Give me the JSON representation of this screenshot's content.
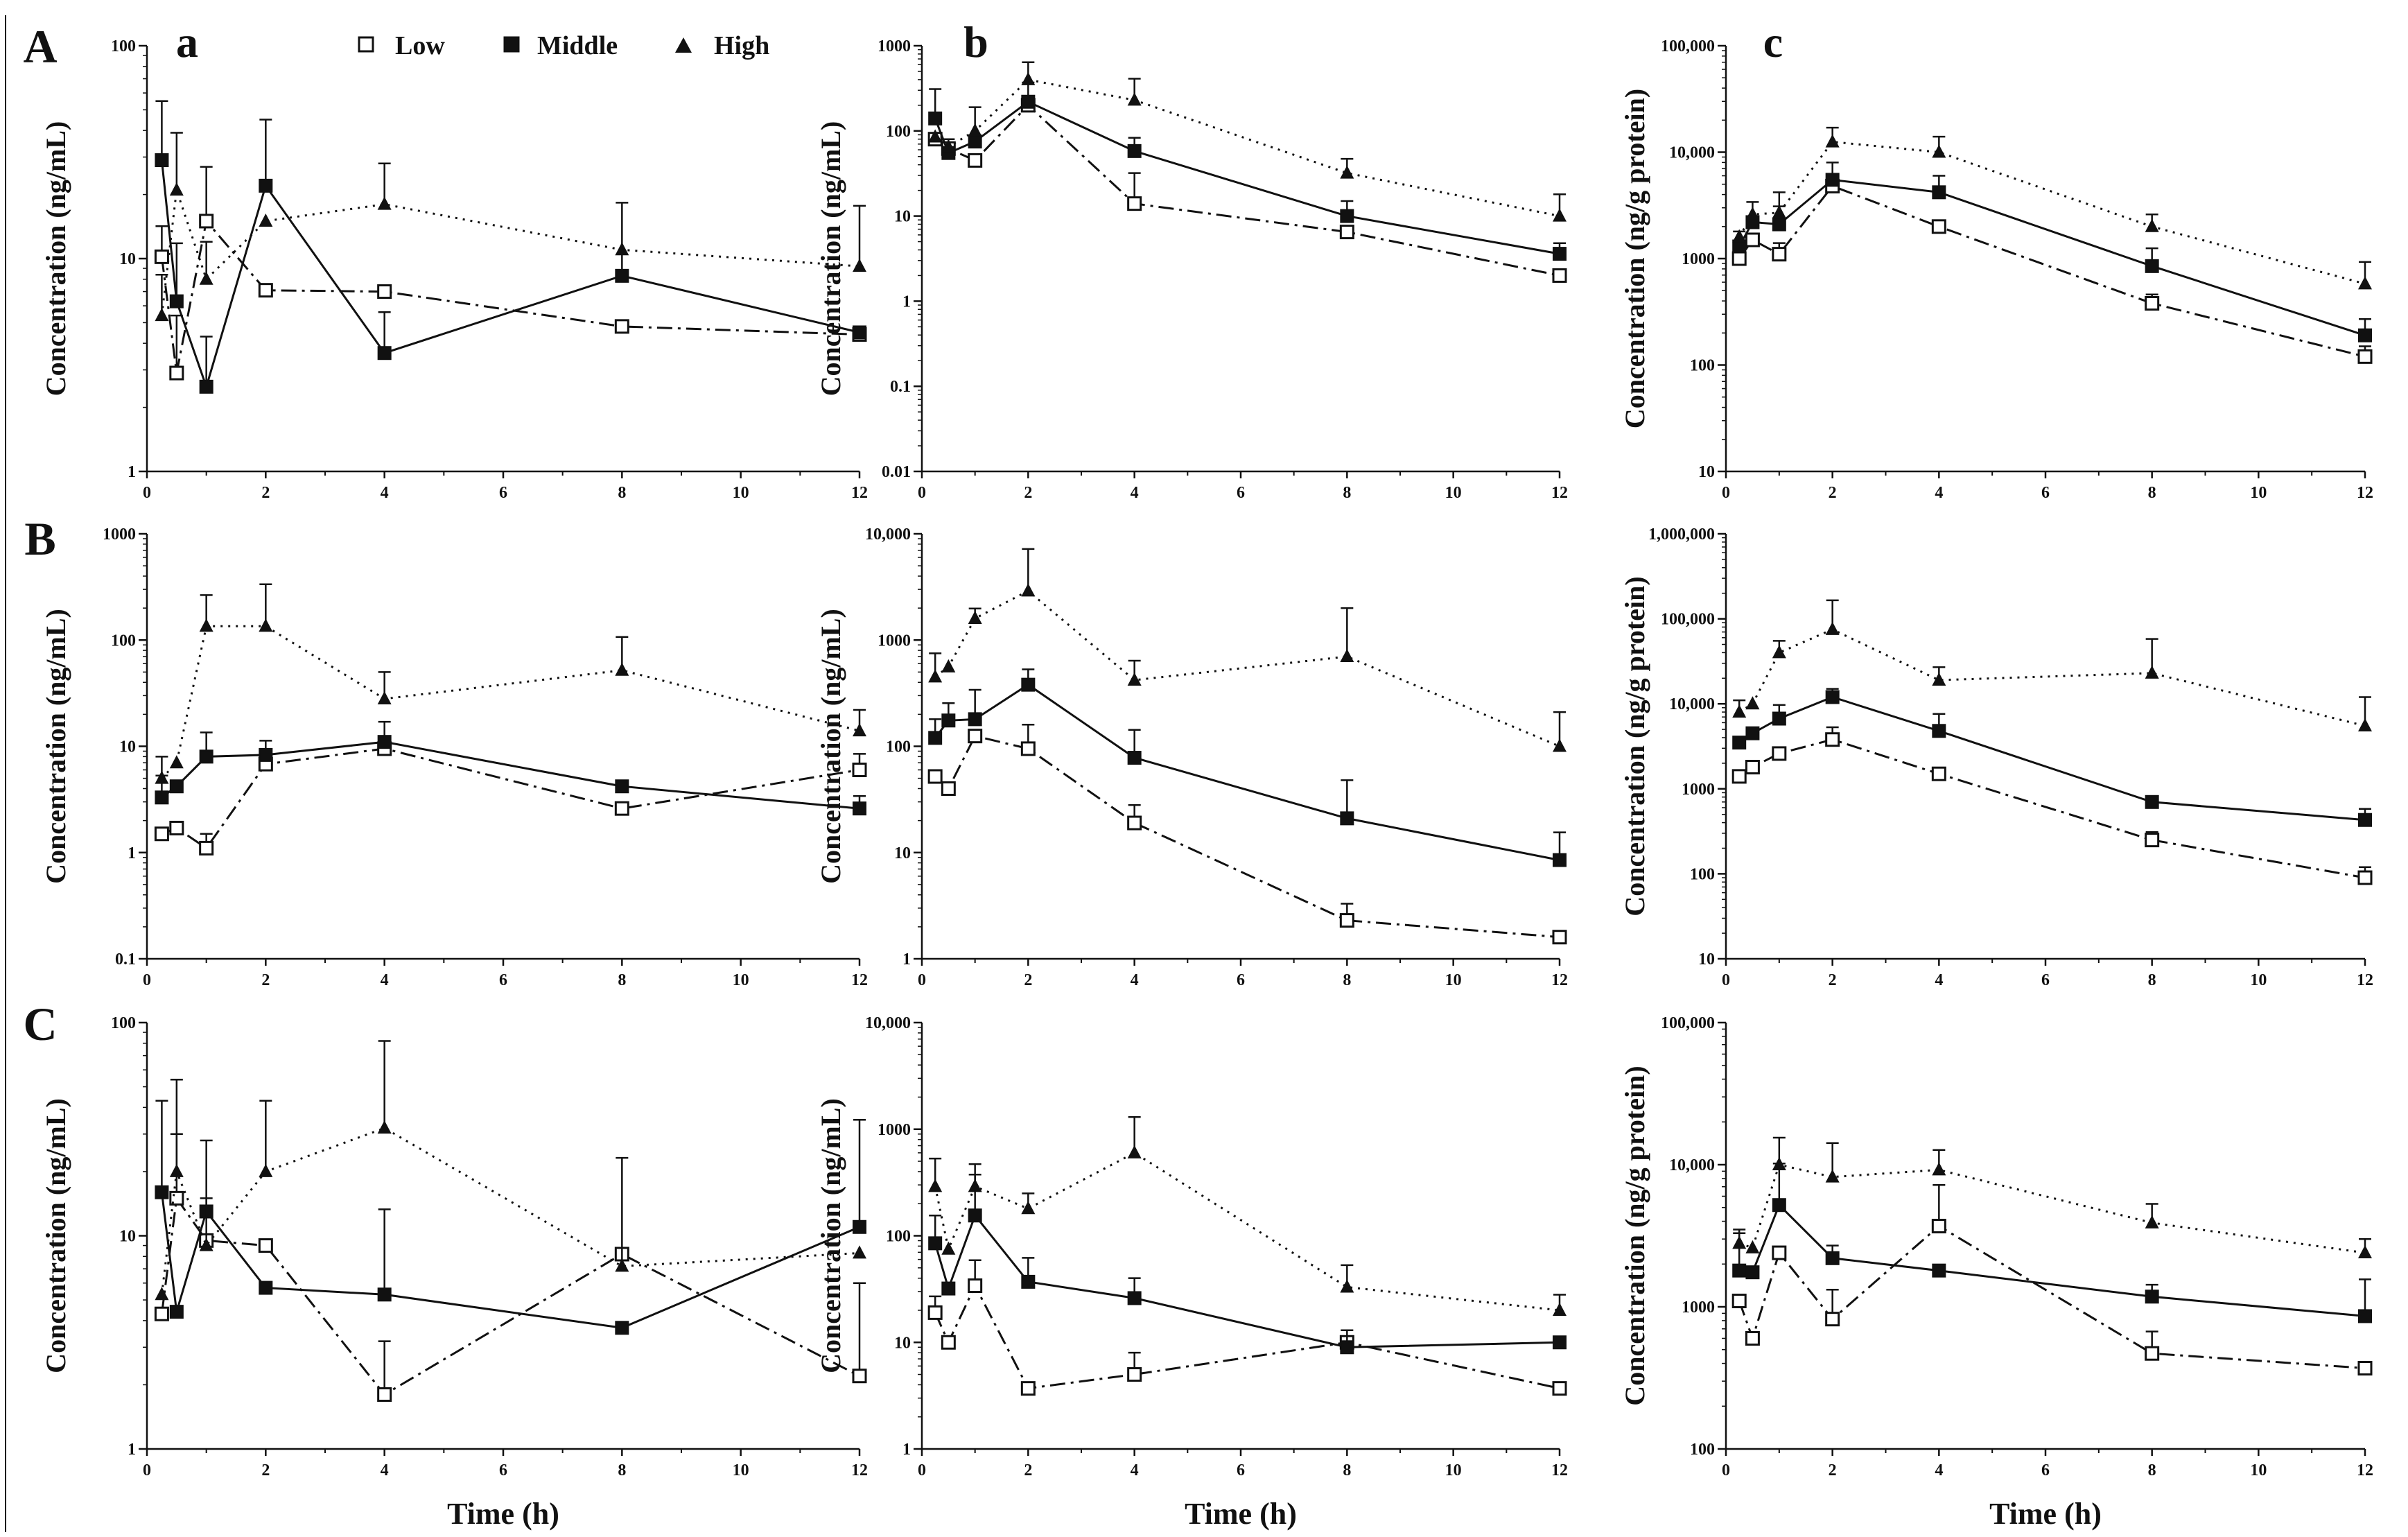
{
  "row_labels": [
    "A",
    "B",
    "C"
  ],
  "col_labels": [
    "a",
    "b",
    "c"
  ],
  "legend": [
    "Low",
    "Middle",
    "High"
  ],
  "series_styles": {
    "Low": {
      "marker": "open-square",
      "line": "dash-dot",
      "color": "#111111"
    },
    "Middle": {
      "marker": "filled-square",
      "line": "solid",
      "color": "#111111"
    },
    "High": {
      "marker": "filled-triangle",
      "line": "dotted",
      "color": "#111111"
    }
  },
  "x_axis_label": "Time (h)",
  "chart_data": [
    {
      "type": "line",
      "row": "A",
      "col": "a",
      "log_y": true,
      "xlim": [
        0,
        12
      ],
      "ylim": [
        1,
        100
      ],
      "x_ticks": [
        0,
        2,
        4,
        6,
        8,
        10,
        12
      ],
      "y_ticks": [
        1,
        10,
        100
      ],
      "y_tick_labels": [
        "1",
        "10",
        "100"
      ],
      "xlabel": "",
      "ylabel": "Concentration (ng/mL)",
      "x": [
        0.25,
        0.5,
        1,
        2,
        4,
        8,
        12
      ],
      "series": [
        {
          "name": "Low",
          "values": [
            10.2,
            2.9,
            15,
            7.1,
            7,
            4.8,
            4.4
          ],
          "errors": [
            4,
            2.5,
            12,
            0,
            0,
            0,
            0
          ]
        },
        {
          "name": "Middle",
          "values": [
            29,
            6.3,
            2.5,
            22,
            3.6,
            8.3,
            4.5
          ],
          "errors": [
            26,
            5.5,
            1.8,
            23,
            2,
            10,
            0
          ]
        },
        {
          "name": "High",
          "values": [
            5.4,
            21,
            8,
            15,
            18,
            11,
            9.2
          ],
          "errors": [
            3,
            18,
            4,
            0,
            10,
            0,
            8.5
          ]
        }
      ]
    },
    {
      "type": "line",
      "row": "A",
      "col": "b",
      "log_y": true,
      "xlim": [
        0,
        12
      ],
      "ylim": [
        0.01,
        1000
      ],
      "x_ticks": [
        0,
        2,
        4,
        6,
        8,
        10,
        12
      ],
      "y_ticks": [
        0.01,
        0.1,
        1,
        10,
        100,
        1000
      ],
      "y_tick_labels": [
        "0.01",
        "0.1",
        "1",
        "10",
        "100",
        "1000"
      ],
      "xlabel": "",
      "ylabel": "Concentration (ng/mL)",
      "x": [
        0.25,
        0.5,
        1,
        2,
        4,
        8,
        12
      ],
      "series": [
        {
          "name": "Low",
          "values": [
            80,
            62,
            45,
            200,
            14,
            6.5,
            2
          ],
          "errors": [
            0,
            0,
            0,
            0,
            18,
            0,
            0
          ]
        },
        {
          "name": "Middle",
          "values": [
            140,
            55,
            75,
            220,
            58,
            10,
            3.6
          ],
          "errors": [
            170,
            25,
            0,
            150,
            25,
            5,
            1.2
          ]
        },
        {
          "name": "High",
          "values": [
            85,
            65,
            100,
            400,
            230,
            32,
            10
          ],
          "errors": [
            0,
            0,
            90,
            240,
            180,
            15,
            8
          ]
        }
      ]
    },
    {
      "type": "line",
      "row": "A",
      "col": "c",
      "log_y": true,
      "xlim": [
        0,
        12
      ],
      "ylim": [
        10,
        100000
      ],
      "x_ticks": [
        0,
        2,
        4,
        6,
        8,
        10,
        12
      ],
      "y_ticks": [
        10,
        100,
        1000,
        10000,
        100000
      ],
      "y_tick_labels": [
        "10",
        "100",
        "1000",
        "10,000",
        "100,000"
      ],
      "xlabel": "",
      "ylabel": "Concentration (ng/g protein)",
      "x": [
        0.25,
        0.5,
        1,
        2,
        4,
        8,
        12
      ],
      "series": [
        {
          "name": "Low",
          "values": [
            1000,
            1500,
            1100,
            4800,
            2000,
            380,
            120
          ],
          "errors": [
            0,
            0,
            300,
            0,
            0,
            80,
            30
          ]
        },
        {
          "name": "Middle",
          "values": [
            1300,
            2200,
            2100,
            5500,
            4200,
            850,
            190
          ],
          "errors": [
            500,
            1200,
            1000,
            2500,
            1800,
            400,
            80
          ]
        },
        {
          "name": "High",
          "values": [
            1600,
            2600,
            2700,
            12500,
            10000,
            2000,
            580
          ],
          "errors": [
            0,
            0,
            1500,
            4500,
            4000,
            600,
            350
          ]
        }
      ]
    },
    {
      "type": "line",
      "row": "B",
      "col": "a",
      "log_y": true,
      "xlim": [
        0,
        12
      ],
      "ylim": [
        0.1,
        1000
      ],
      "x_ticks": [
        0,
        2,
        4,
        6,
        8,
        10,
        12
      ],
      "y_ticks": [
        0.1,
        1,
        10,
        100,
        1000
      ],
      "y_tick_labels": [
        "0.1",
        "1",
        "10",
        "100",
        "1000"
      ],
      "xlabel": "",
      "ylabel": "Concentration (ng/mL)",
      "x": [
        0.25,
        0.5,
        1,
        2,
        4,
        8,
        12
      ],
      "series": [
        {
          "name": "Low",
          "values": [
            1.5,
            1.7,
            1.1,
            6.8,
            9.5,
            2.6,
            6
          ],
          "errors": [
            0,
            0,
            0.4,
            0,
            0,
            0,
            2.5
          ]
        },
        {
          "name": "Middle",
          "values": [
            3.3,
            4.2,
            8,
            8.3,
            11,
            4.2,
            2.6
          ],
          "errors": [
            2,
            0,
            5.5,
            3,
            6,
            0,
            0.8
          ]
        },
        {
          "name": "High",
          "values": [
            5,
            7,
            135,
            135,
            28,
            52,
            14
          ],
          "errors": [
            3,
            0,
            130,
            200,
            22,
            55,
            8
          ]
        }
      ]
    },
    {
      "type": "line",
      "row": "B",
      "col": "b",
      "log_y": true,
      "xlim": [
        0,
        12
      ],
      "ylim": [
        1,
        10000
      ],
      "x_ticks": [
        0,
        2,
        4,
        6,
        8,
        10,
        12
      ],
      "y_ticks": [
        1,
        10,
        100,
        1000,
        10000
      ],
      "y_tick_labels": [
        "1",
        "10",
        "100",
        "1000",
        "10,000"
      ],
      "xlabel": "",
      "ylabel": "Concentration (ng/mL)",
      "x": [
        0.25,
        0.5,
        1,
        2,
        4,
        8,
        12
      ],
      "series": [
        {
          "name": "Low",
          "values": [
            52,
            40,
            125,
            95,
            19,
            2.3,
            1.6
          ],
          "errors": [
            0,
            0,
            0,
            65,
            9,
            1,
            0
          ]
        },
        {
          "name": "Middle",
          "values": [
            120,
            175,
            180,
            380,
            78,
            21,
            8.5
          ],
          "errors": [
            60,
            80,
            160,
            150,
            65,
            27,
            7
          ]
        },
        {
          "name": "High",
          "values": [
            450,
            560,
            1600,
            2900,
            420,
            700,
            100
          ],
          "errors": [
            300,
            0,
            380,
            4300,
            220,
            1300,
            110
          ]
        }
      ]
    },
    {
      "type": "line",
      "row": "B",
      "col": "c",
      "log_y": true,
      "xlim": [
        0,
        12
      ],
      "ylim": [
        10,
        1000000
      ],
      "x_ticks": [
        0,
        2,
        4,
        6,
        8,
        10,
        12
      ],
      "y_ticks": [
        10,
        100,
        1000,
        10000,
        100000,
        1000000
      ],
      "y_tick_labels": [
        "10",
        "100",
        "1000",
        "10,000",
        "100,000",
        "1,000,000"
      ],
      "xlabel": "",
      "ylabel": "Concentration (ng/g protein)",
      "x": [
        0.25,
        0.5,
        1,
        2,
        4,
        8,
        12
      ],
      "series": [
        {
          "name": "Low",
          "values": [
            1400,
            1800,
            2600,
            3800,
            1500,
            250,
            90
          ],
          "errors": [
            0,
            0,
            0,
            1500,
            0,
            60,
            30
          ]
        },
        {
          "name": "Middle",
          "values": [
            3500,
            4500,
            6700,
            12000,
            4800,
            700,
            430
          ],
          "errors": [
            0,
            0,
            3000,
            3000,
            2800,
            0,
            150
          ]
        },
        {
          "name": "High",
          "values": [
            8000,
            10000,
            40000,
            75000,
            19000,
            23000,
            5500
          ],
          "errors": [
            3000,
            0,
            15000,
            90000,
            8000,
            35000,
            6500
          ]
        }
      ]
    },
    {
      "type": "line",
      "row": "C",
      "col": "a",
      "log_y": true,
      "xlim": [
        0,
        12
      ],
      "ylim": [
        1,
        100
      ],
      "x_ticks": [
        0,
        2,
        4,
        6,
        8,
        10,
        12
      ],
      "y_ticks": [
        1,
        10,
        100
      ],
      "y_tick_labels": [
        "1",
        "10",
        "100"
      ],
      "xlabel": "Time (h)",
      "ylabel": "Concentration (ng/mL)",
      "x": [
        0.25,
        0.5,
        1,
        2,
        4,
        8,
        12
      ],
      "series": [
        {
          "name": "Low",
          "values": [
            4.3,
            15,
            9.5,
            9,
            1.8,
            8.2,
            2.2
          ],
          "errors": [
            0,
            15,
            0,
            0,
            1.4,
            0,
            3.8
          ]
        },
        {
          "name": "Middle",
          "values": [
            16,
            4.4,
            13,
            5.7,
            5.3,
            3.7,
            11
          ],
          "errors": [
            27,
            0,
            15,
            0,
            8,
            0,
            24
          ]
        },
        {
          "name": "High",
          "values": [
            5.3,
            20,
            9,
            20,
            32,
            7.2,
            8.3
          ],
          "errors": [
            0,
            34,
            6,
            23,
            50,
            16,
            0
          ]
        }
      ]
    },
    {
      "type": "line",
      "row": "C",
      "col": "b",
      "log_y": true,
      "xlim": [
        0,
        12
      ],
      "ylim": [
        1,
        10000
      ],
      "x_ticks": [
        0,
        2,
        4,
        6,
        8,
        10,
        12
      ],
      "y_ticks": [
        1,
        10,
        100,
        1000,
        10000
      ],
      "y_tick_labels": [
        "1",
        "10",
        "100",
        "1000",
        "10,000"
      ],
      "xlabel": "Time (h)",
      "ylabel": "Concentration (ng/mL)",
      "x": [
        0.25,
        0.5,
        1,
        2,
        4,
        8,
        12
      ],
      "series": [
        {
          "name": "Low",
          "values": [
            19,
            10,
            34,
            3.7,
            5,
            10,
            3.7
          ],
          "errors": [
            8,
            0,
            25,
            0,
            3,
            0,
            0
          ]
        },
        {
          "name": "Middle",
          "values": [
            85,
            32,
            155,
            37,
            26,
            9,
            10
          ],
          "errors": [
            70,
            0,
            220,
            25,
            14,
            4,
            0
          ]
        },
        {
          "name": "High",
          "values": [
            290,
            75,
            290,
            180,
            600,
            33,
            20
          ],
          "errors": [
            240,
            0,
            180,
            70,
            700,
            20,
            8
          ]
        }
      ]
    },
    {
      "type": "line",
      "row": "C",
      "col": "c",
      "log_y": true,
      "xlim": [
        0,
        12
      ],
      "ylim": [
        100,
        100000
      ],
      "x_ticks": [
        0,
        2,
        4,
        6,
        8,
        10,
        12
      ],
      "y_ticks": [
        100,
        1000,
        10000,
        100000
      ],
      "y_tick_labels": [
        "100",
        "1000",
        "10,000",
        "100,000"
      ],
      "xlabel": "Time (h)",
      "ylabel": "Concentration (ng/g protein)",
      "x": [
        0.25,
        0.5,
        1,
        2,
        4,
        8,
        12
      ],
      "series": [
        {
          "name": "Low",
          "values": [
            1100,
            600,
            2400,
            820,
            3700,
            470,
            370
          ],
          "errors": [
            0,
            0,
            0,
            500,
            3500,
            200,
            0
          ]
        },
        {
          "name": "Middle",
          "values": [
            1800,
            1750,
            5200,
            2200,
            1800,
            1180,
            860
          ],
          "errors": [
            1500,
            0,
            5000,
            500,
            0,
            250,
            700
          ]
        },
        {
          "name": "High",
          "values": [
            2800,
            2600,
            10000,
            8200,
            9200,
            3900,
            2400
          ],
          "errors": [
            700,
            0,
            5500,
            6000,
            3500,
            1400,
            600
          ]
        }
      ]
    }
  ]
}
